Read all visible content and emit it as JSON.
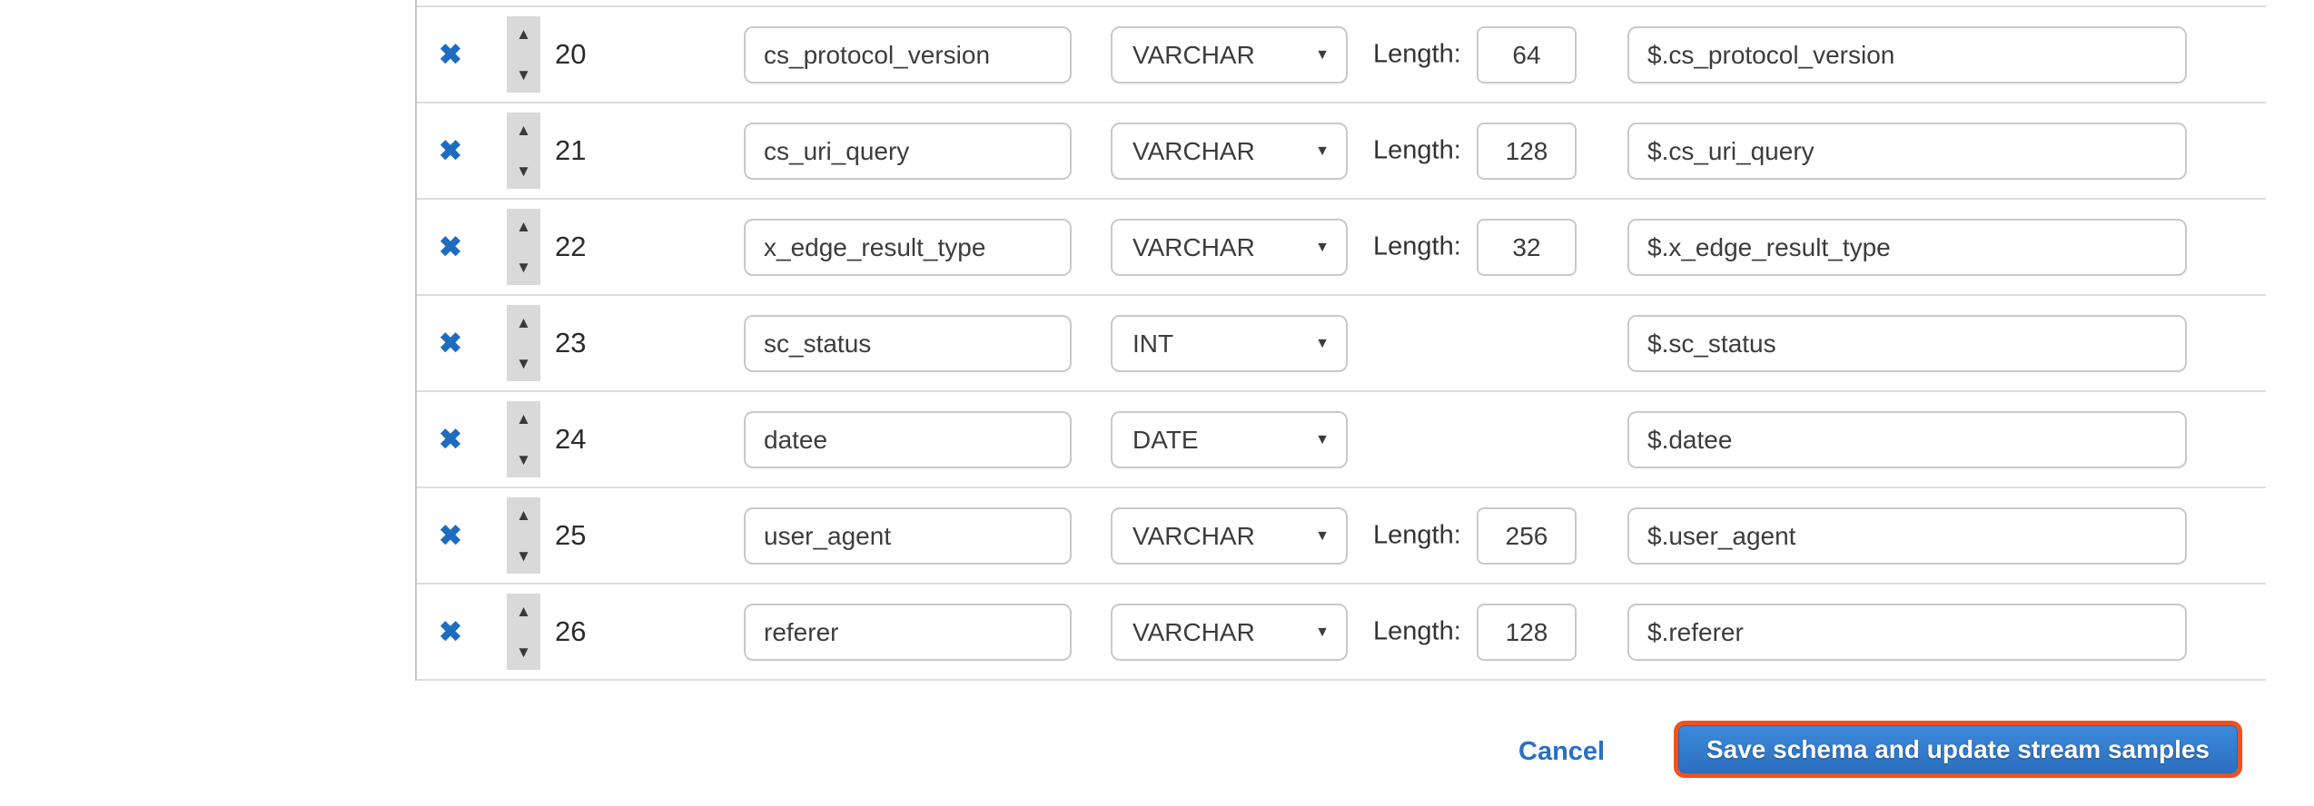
{
  "table": {
    "rows": [
      {
        "position": "20",
        "name": "cs_protocol_version",
        "type": "VARCHAR",
        "length_label": "Length:",
        "length": "64",
        "path": "$.cs_protocol_version"
      },
      {
        "position": "21",
        "name": "cs_uri_query",
        "type": "VARCHAR",
        "length_label": "Length:",
        "length": "128",
        "path": "$.cs_uri_query"
      },
      {
        "position": "22",
        "name": "x_edge_result_type",
        "type": "VARCHAR",
        "length_label": "Length:",
        "length": "32",
        "path": "$.x_edge_result_type"
      },
      {
        "position": "23",
        "name": "sc_status",
        "type": "INT",
        "length_label": "",
        "length": null,
        "path": "$.sc_status"
      },
      {
        "position": "24",
        "name": "datee",
        "type": "DATE",
        "length_label": "",
        "length": null,
        "path": "$.datee"
      },
      {
        "position": "25",
        "name": "user_agent",
        "type": "VARCHAR",
        "length_label": "Length:",
        "length": "256",
        "path": "$.user_agent"
      },
      {
        "position": "26",
        "name": "referer",
        "type": "VARCHAR",
        "length_label": "Length:",
        "length": "128",
        "path": "$.referer"
      }
    ]
  },
  "icons": {
    "delete_icon": "✖",
    "move_up_icon": "▲",
    "move_down_icon": "▼",
    "dropdown_caret_icon": "▼"
  },
  "footer": {
    "cancel_label": "Cancel",
    "save_label": "Save schema and update stream samples"
  },
  "colors": {
    "delete_x_blue": "#1d6cc0",
    "link_blue": "#2b6fc4",
    "button_gradient_top": "#3c89db",
    "button_gradient_bottom": "#2d6fbf",
    "button_focus_ring_orange": "#f4501d",
    "divider_gray": "#dcdcdc",
    "stepper_gray": "#d9d9d9"
  }
}
